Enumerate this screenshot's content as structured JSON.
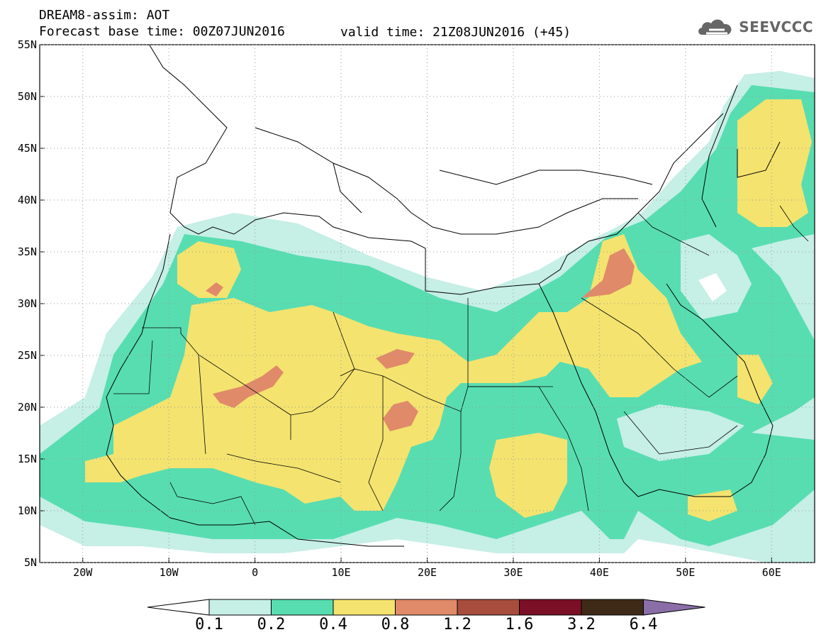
{
  "header": {
    "title_line1": "DREAM8-assim: AOT",
    "title_line2": "Forecast base time: 00Z07JUN2016",
    "valid_time": "valid time: 21Z08JUN2016 (+45)",
    "logo_text": "SEEVCCC",
    "logo_icon": "cloud-icon"
  },
  "map": {
    "lon_range": [
      -25,
      65
    ],
    "lat_range": [
      5,
      55
    ],
    "x_ticks": [
      "20W",
      "10W",
      "0",
      "10E",
      "20E",
      "30E",
      "40E",
      "50E",
      "60E"
    ],
    "y_ticks": [
      "55N",
      "50N",
      "45N",
      "40N",
      "35N",
      "30N",
      "25N",
      "20N",
      "15N",
      "10N",
      "5N"
    ]
  },
  "colorbar": {
    "labels": [
      "0.1",
      "0.2",
      "0.4",
      "0.8",
      "1.2",
      "1.6",
      "3.2",
      "6.4"
    ],
    "colors": [
      "#ffffff",
      "#c6efe6",
      "#58ddb1",
      "#f4e36f",
      "#e08a6a",
      "#a84d3d",
      "#7a0f25",
      "#3e2a17",
      "#8a6ea8"
    ]
  }
}
